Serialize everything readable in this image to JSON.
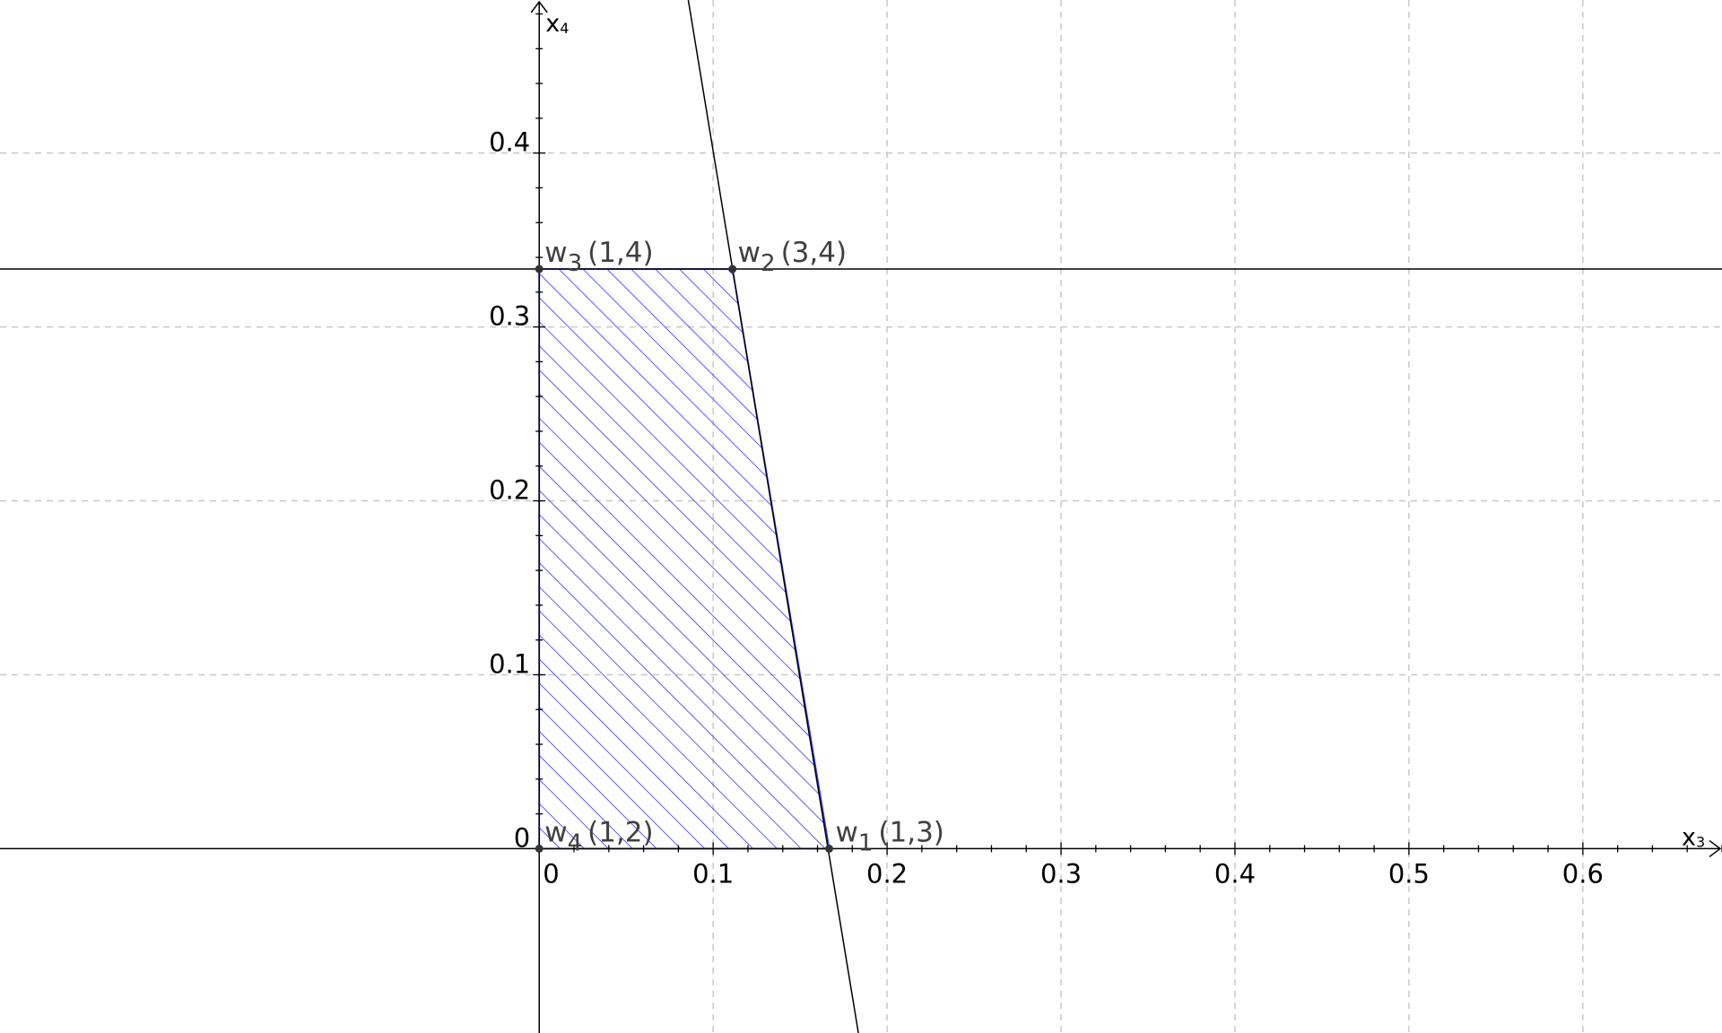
{
  "axes": {
    "x": {
      "name_base": "x",
      "name_sub": "3",
      "range": [
        -0.31,
        0.68
      ],
      "major_ticks": [
        0,
        0.1,
        0.2,
        0.3,
        0.4,
        0.5,
        0.6
      ],
      "tick_labels": [
        "0",
        "0.1",
        "0.2",
        "0.3",
        "0.4",
        "0.5",
        "0.6"
      ],
      "minor_step": 0.02
    },
    "y": {
      "name_base": "x",
      "name_sub": "4",
      "range": [
        -0.106,
        0.488
      ],
      "major_ticks": [
        0,
        0.1,
        0.2,
        0.3,
        0.4
      ],
      "tick_labels": [
        "0",
        "0.1",
        "0.2",
        "0.3",
        "0.4"
      ],
      "minor_step": 0.02
    },
    "grid": true,
    "grid_style": "dashed"
  },
  "lines": [
    {
      "kind": "horizontal",
      "y": 0.3333
    },
    {
      "kind": "through_points",
      "p1": [
        0.0857,
        0.488
      ],
      "p2": [
        0.1835,
        -0.106
      ]
    }
  ],
  "region": {
    "style": "hatched",
    "color": "#3333ff",
    "vertices": [
      [
        0,
        0
      ],
      [
        0.1667,
        0
      ],
      [
        0.1111,
        0.3333
      ],
      [
        0,
        0.3333
      ]
    ]
  },
  "points": [
    {
      "name_base": "w",
      "name_sub": "1",
      "coords_text": "(1,3)",
      "x": 0.1667,
      "y": 0
    },
    {
      "name_base": "w",
      "name_sub": "2",
      "coords_text": "(3,4)",
      "x": 0.1111,
      "y": 0.3333
    },
    {
      "name_base": "w",
      "name_sub": "3",
      "coords_text": "(1,4)",
      "x": 0,
      "y": 0.3333
    },
    {
      "name_base": "w",
      "name_sub": "4",
      "coords_text": "(1,2)",
      "x": 0,
      "y": 0
    }
  ],
  "colors": {
    "axis": "#000000",
    "grid": "#c8c8c8",
    "line": "#000000",
    "region": "#3333ff",
    "point": "#333333",
    "label": "#404040"
  }
}
